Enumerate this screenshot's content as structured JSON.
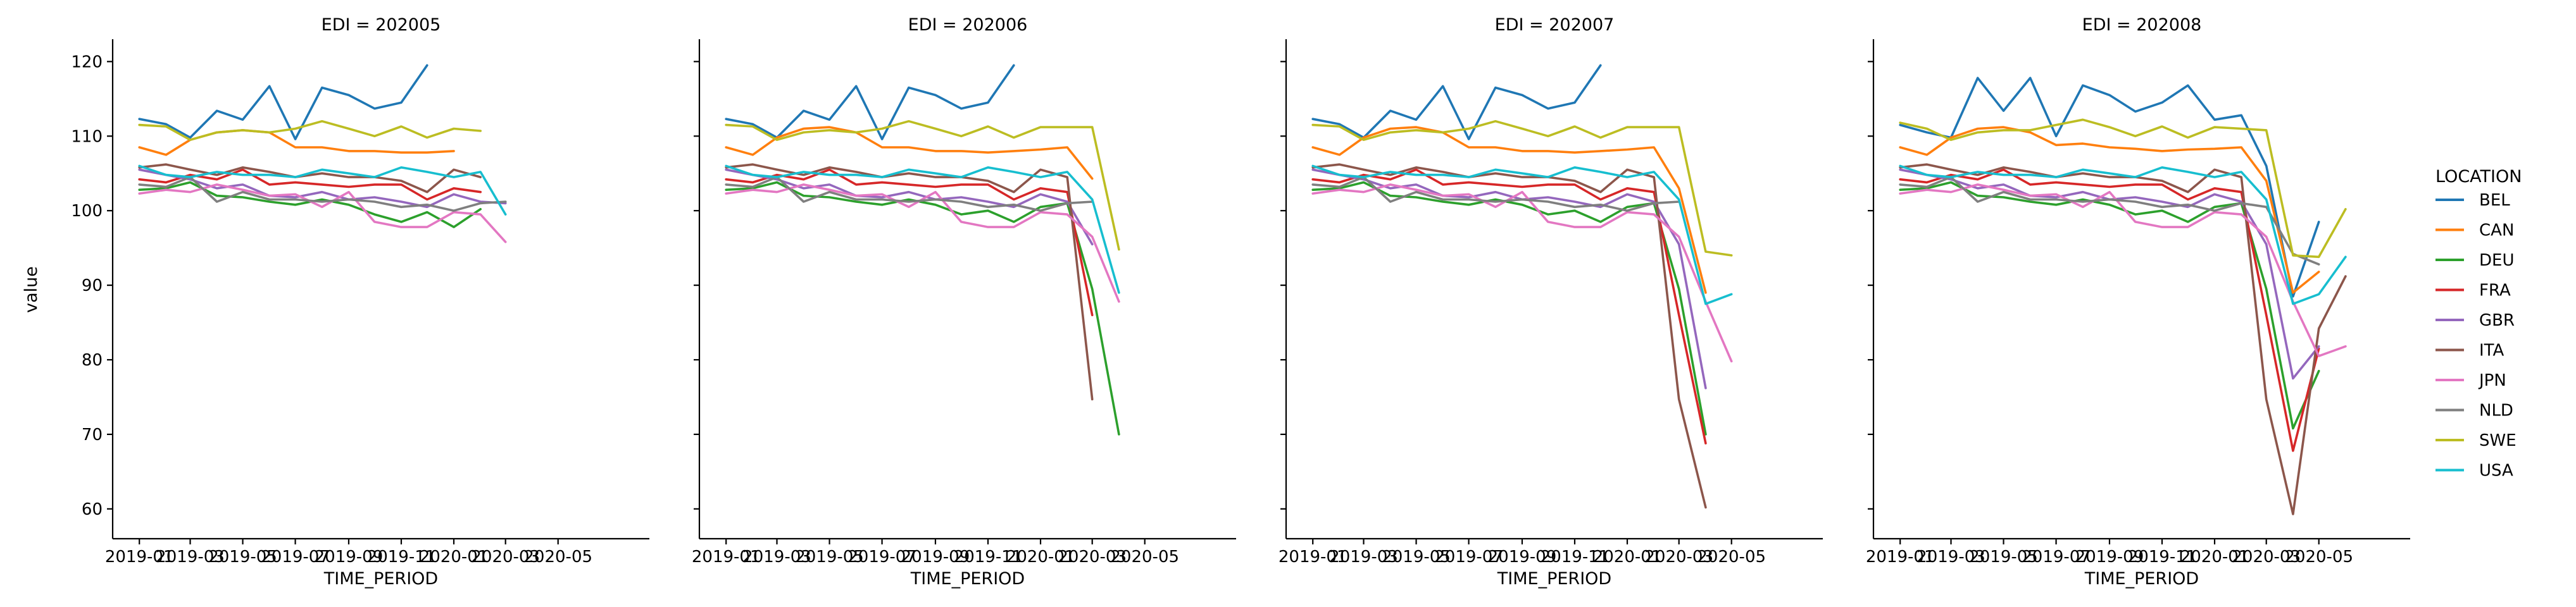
{
  "chart_data": {
    "type": "line",
    "xlabel": "TIME_PERIOD",
    "ylabel": "value",
    "legend_title": "LOCATION",
    "legend_placement": "right",
    "grid": false,
    "ylim": [
      56,
      123
    ],
    "xlim": [
      "2018-12-01",
      "2020-08-15"
    ],
    "yticks": [
      60,
      70,
      80,
      90,
      100,
      110,
      120
    ],
    "xticks": [
      {
        "date": "2019-01-01",
        "label": "2019-01"
      },
      {
        "date": "2019-03-01",
        "label": "2019-03"
      },
      {
        "date": "2019-05-01",
        "label": "2019-05"
      },
      {
        "date": "2019-07-01",
        "label": "2019-07"
      },
      {
        "date": "2019-09-01",
        "label": "2019-09"
      },
      {
        "date": "2019-11-01",
        "label": "2019-11"
      },
      {
        "date": "2020-01-01",
        "label": "2020-01"
      },
      {
        "date": "2020-03-01",
        "label": "2020-03"
      },
      {
        "date": "2020-05-01",
        "label": "2020-05"
      }
    ],
    "series_colors": {
      "BEL": "#1f77b4",
      "CAN": "#ff7f0e",
      "DEU": "#2ca02c",
      "FRA": "#d62728",
      "GBR": "#9467bd",
      "ITA": "#8c564b",
      "JPN": "#e377c2",
      "NLD": "#7f7f7f",
      "SWE": "#bcbd22",
      "USA": "#17becf"
    },
    "x": [
      "2019-01-01",
      "2019-02-01",
      "2019-03-01",
      "2019-04-01",
      "2019-05-01",
      "2019-06-01",
      "2019-07-01",
      "2019-08-01",
      "2019-09-01",
      "2019-10-01",
      "2019-11-01",
      "2019-12-01",
      "2020-01-01",
      "2020-02-01",
      "2020-03-01",
      "2020-04-01",
      "2020-05-01",
      "2020-06-01"
    ],
    "panels": [
      {
        "title": "EDI = 202005",
        "series": [
          {
            "name": "BEL",
            "values": [
              112.3,
              111.6,
              109.8,
              113.4,
              112.2,
              116.7,
              109.6,
              116.5,
              115.5,
              113.7,
              114.5,
              119.5
            ]
          },
          {
            "name": "CAN",
            "values": [
              108.5,
              107.5,
              109.5,
              110.5,
              110.8,
              110.5,
              108.5,
              108.5,
              108.0,
              108.0,
              107.8,
              107.8,
              108.0
            ]
          },
          {
            "name": "DEU",
            "values": [
              102.8,
              103.0,
              103.8,
              102.0,
              101.8,
              101.2,
              100.8,
              101.5,
              100.8,
              99.5,
              98.5,
              99.8,
              97.8,
              100.2
            ]
          },
          {
            "name": "FRA",
            "values": [
              104.2,
              103.8,
              104.8,
              104.2,
              105.5,
              103.5,
              103.8,
              103.5,
              103.2,
              103.5,
              103.5,
              101.5,
              103.0,
              102.5
            ]
          },
          {
            "name": "GBR",
            "values": [
              105.5,
              104.8,
              104.2,
              103.0,
              103.5,
              102.0,
              101.8,
              102.5,
              101.5,
              101.8,
              101.2,
              100.5,
              102.2,
              101.2,
              101.0
            ]
          },
          {
            "name": "ITA",
            "values": [
              105.8,
              106.2,
              105.5,
              104.8,
              105.8,
              105.2,
              104.5,
              105.0,
              104.5,
              104.5,
              104.0,
              102.5,
              105.5,
              104.5
            ]
          },
          {
            "name": "JPN",
            "values": [
              102.3,
              102.8,
              102.5,
              103.5,
              102.8,
              102.0,
              102.2,
              100.5,
              102.5,
              98.5,
              97.8,
              97.8,
              99.8,
              99.5,
              95.8
            ]
          },
          {
            "name": "NLD",
            "values": [
              103.5,
              103.2,
              104.5,
              101.2,
              102.5,
              101.5,
              101.5,
              101.2,
              101.5,
              101.2,
              100.5,
              100.8,
              100.0,
              101.0,
              101.2
            ]
          },
          {
            "name": "SWE",
            "values": [
              111.5,
              111.3,
              109.5,
              110.5,
              110.8,
              110.5,
              111.0,
              112.0,
              111.0,
              110.0,
              111.3,
              109.8,
              111.0,
              110.7
            ]
          },
          {
            "name": "USA",
            "values": [
              106.0,
              104.8,
              104.5,
              105.2,
              104.8,
              104.8,
              104.5,
              105.5,
              105.0,
              104.5,
              105.8,
              105.2,
              104.5,
              105.2,
              99.5
            ]
          }
        ]
      },
      {
        "title": "EDI = 202006",
        "series": [
          {
            "name": "BEL",
            "values": [
              112.3,
              111.6,
              109.8,
              113.4,
              112.2,
              116.7,
              109.6,
              116.5,
              115.5,
              113.7,
              114.5,
              119.5
            ]
          },
          {
            "name": "CAN",
            "values": [
              108.5,
              107.5,
              109.8,
              111.0,
              111.2,
              110.5,
              108.5,
              108.5,
              108.0,
              108.0,
              107.8,
              108.0,
              108.2,
              108.5,
              104.3
            ]
          },
          {
            "name": "DEU",
            "values": [
              102.8,
              103.0,
              103.8,
              102.0,
              101.8,
              101.2,
              100.8,
              101.5,
              100.8,
              99.5,
              100.0,
              98.5,
              100.5,
              101.0,
              89.5,
              70.0
            ]
          },
          {
            "name": "FRA",
            "values": [
              104.2,
              103.8,
              104.8,
              104.2,
              105.5,
              103.5,
              103.8,
              103.5,
              103.2,
              103.5,
              103.5,
              101.5,
              103.0,
              102.5,
              86.0
            ]
          },
          {
            "name": "GBR",
            "values": [
              105.5,
              104.8,
              104.2,
              103.0,
              103.5,
              102.0,
              101.8,
              102.5,
              101.5,
              101.8,
              101.2,
              100.5,
              102.2,
              101.2,
              95.5
            ]
          },
          {
            "name": "ITA",
            "values": [
              105.8,
              106.2,
              105.5,
              104.8,
              105.8,
              105.2,
              104.5,
              105.0,
              104.5,
              104.5,
              104.0,
              102.5,
              105.5,
              104.5,
              74.7
            ]
          },
          {
            "name": "JPN",
            "values": [
              102.3,
              102.8,
              102.5,
              103.5,
              102.8,
              102.0,
              102.2,
              100.5,
              102.5,
              98.5,
              97.8,
              97.8,
              99.8,
              99.5,
              96.5,
              87.8
            ]
          },
          {
            "name": "NLD",
            "values": [
              103.5,
              103.2,
              104.5,
              101.2,
              102.5,
              101.5,
              101.5,
              101.2,
              101.5,
              101.2,
              100.5,
              100.8,
              100.0,
              101.0,
              101.2
            ]
          },
          {
            "name": "SWE",
            "values": [
              111.5,
              111.3,
              109.5,
              110.5,
              110.8,
              110.5,
              111.0,
              112.0,
              111.0,
              110.0,
              111.3,
              109.8,
              111.2,
              111.2,
              111.2,
              94.8
            ]
          },
          {
            "name": "USA",
            "values": [
              106.0,
              104.8,
              104.5,
              105.2,
              104.8,
              104.8,
              104.5,
              105.5,
              105.0,
              104.5,
              105.8,
              105.2,
              104.5,
              105.2,
              101.5,
              89.0
            ]
          }
        ]
      },
      {
        "title": "EDI = 202007",
        "series": [
          {
            "name": "BEL",
            "values": [
              112.3,
              111.6,
              109.8,
              113.4,
              112.2,
              116.7,
              109.6,
              116.5,
              115.5,
              113.7,
              114.5,
              119.5
            ]
          },
          {
            "name": "CAN",
            "values": [
              108.5,
              107.5,
              109.8,
              111.0,
              111.2,
              110.5,
              108.5,
              108.5,
              108.0,
              108.0,
              107.8,
              108.0,
              108.2,
              108.5,
              103.0,
              89.0
            ]
          },
          {
            "name": "DEU",
            "values": [
              102.8,
              103.0,
              103.8,
              102.0,
              101.8,
              101.2,
              100.8,
              101.5,
              100.8,
              99.5,
              100.0,
              98.5,
              100.5,
              101.0,
              89.5,
              70.0
            ]
          },
          {
            "name": "FRA",
            "values": [
              104.2,
              103.8,
              104.8,
              104.2,
              105.5,
              103.5,
              103.8,
              103.5,
              103.2,
              103.5,
              103.5,
              101.5,
              103.0,
              102.5,
              86.0,
              68.8
            ]
          },
          {
            "name": "GBR",
            "values": [
              105.5,
              104.8,
              104.2,
              103.0,
              103.5,
              102.0,
              101.8,
              102.5,
              101.5,
              101.8,
              101.2,
              100.5,
              102.2,
              101.2,
              95.5,
              76.2
            ]
          },
          {
            "name": "ITA",
            "values": [
              105.8,
              106.2,
              105.5,
              104.8,
              105.8,
              105.2,
              104.5,
              105.0,
              104.5,
              104.5,
              104.0,
              102.5,
              105.5,
              104.5,
              74.7,
              60.2
            ]
          },
          {
            "name": "JPN",
            "values": [
              102.3,
              102.8,
              102.5,
              103.5,
              102.8,
              102.0,
              102.2,
              100.5,
              102.5,
              98.5,
              97.8,
              97.8,
              99.8,
              99.5,
              96.5,
              87.8,
              79.8
            ]
          },
          {
            "name": "NLD",
            "values": [
              103.5,
              103.2,
              104.5,
              101.2,
              102.5,
              101.5,
              101.5,
              101.2,
              101.5,
              101.2,
              100.5,
              100.8,
              100.0,
              101.0,
              101.2
            ]
          },
          {
            "name": "SWE",
            "values": [
              111.5,
              111.3,
              109.5,
              110.5,
              110.8,
              110.5,
              111.0,
              112.0,
              111.0,
              110.0,
              111.3,
              109.8,
              111.2,
              111.2,
              111.2,
              94.5,
              94.0
            ]
          },
          {
            "name": "USA",
            "values": [
              106.0,
              104.8,
              104.5,
              105.2,
              104.8,
              104.8,
              104.5,
              105.5,
              105.0,
              104.5,
              105.8,
              105.2,
              104.5,
              105.2,
              101.5,
              87.5,
              88.8
            ]
          }
        ]
      },
      {
        "title": "EDI = 202008",
        "series": [
          {
            "name": "BEL",
            "values": [
              111.5,
              110.5,
              109.8,
              117.8,
              113.4,
              117.8,
              110.0,
              116.8,
              115.5,
              113.3,
              114.5,
              116.8,
              112.2,
              112.8,
              106.0,
              88.5,
              98.5
            ]
          },
          {
            "name": "CAN",
            "values": [
              108.5,
              107.5,
              109.8,
              111.0,
              111.2,
              110.5,
              108.8,
              109.0,
              108.5,
              108.3,
              108.0,
              108.2,
              108.3,
              108.5,
              104.0,
              89.0,
              91.8
            ]
          },
          {
            "name": "DEU",
            "values": [
              102.8,
              103.0,
              103.8,
              102.0,
              101.8,
              101.2,
              100.8,
              101.5,
              100.8,
              99.5,
              100.0,
              98.5,
              100.5,
              101.0,
              89.5,
              70.8,
              78.5
            ]
          },
          {
            "name": "FRA",
            "values": [
              104.2,
              103.8,
              104.8,
              104.2,
              105.5,
              103.5,
              103.8,
              103.5,
              103.2,
              103.5,
              103.5,
              101.5,
              103.0,
              102.5,
              86.0,
              67.8,
              81.5
            ]
          },
          {
            "name": "GBR",
            "values": [
              105.5,
              104.8,
              104.2,
              103.0,
              103.5,
              102.0,
              101.8,
              102.5,
              101.5,
              101.8,
              101.2,
              100.5,
              102.2,
              101.2,
              95.5,
              77.5,
              81.8
            ]
          },
          {
            "name": "ITA",
            "values": [
              105.8,
              106.2,
              105.5,
              104.8,
              105.8,
              105.2,
              104.5,
              105.0,
              104.5,
              104.5,
              104.0,
              102.5,
              105.5,
              104.5,
              74.7,
              59.3,
              84.2,
              91.2
            ]
          },
          {
            "name": "JPN",
            "values": [
              102.3,
              102.8,
              102.5,
              103.5,
              102.8,
              102.0,
              102.2,
              100.5,
              102.5,
              98.5,
              97.8,
              97.8,
              99.8,
              99.5,
              96.5,
              87.8,
              80.5,
              81.8
            ]
          },
          {
            "name": "NLD",
            "values": [
              103.5,
              103.2,
              104.5,
              101.2,
              102.5,
              101.5,
              101.5,
              101.2,
              101.5,
              101.2,
              100.5,
              100.8,
              100.0,
              101.0,
              100.5,
              94.2,
              92.8
            ]
          },
          {
            "name": "SWE",
            "values": [
              111.8,
              111.0,
              109.5,
              110.5,
              110.8,
              110.8,
              111.5,
              112.2,
              111.2,
              110.0,
              111.3,
              109.8,
              111.2,
              111.0,
              110.8,
              94.0,
              93.8,
              100.2
            ]
          },
          {
            "name": "USA",
            "values": [
              106.0,
              104.8,
              104.5,
              105.2,
              104.8,
              104.8,
              104.5,
              105.5,
              105.0,
              104.5,
              105.8,
              105.2,
              104.5,
              105.2,
              101.5,
              87.5,
              88.8,
              93.8
            ]
          }
        ]
      }
    ]
  }
}
